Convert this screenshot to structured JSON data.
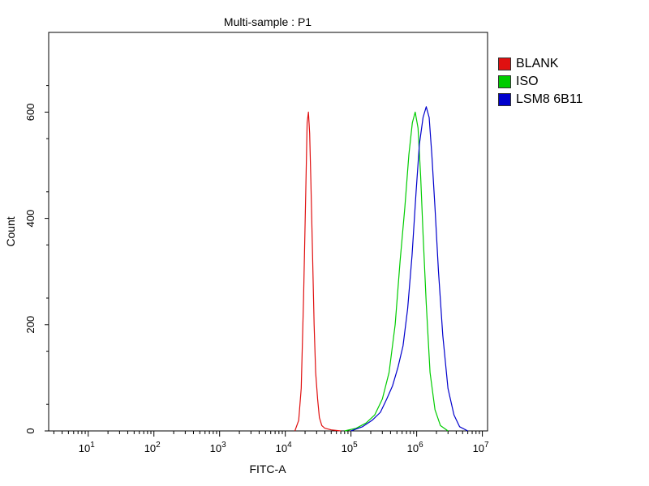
{
  "chart_data": {
    "type": "line",
    "title": "Multi-sample : P1",
    "xlabel": "FITC-A",
    "ylabel": "Count",
    "xscale": "log",
    "xlim": [
      2.5,
      12000000
    ],
    "ylim": [
      0,
      750
    ],
    "yticks": [
      0,
      200,
      400,
      600
    ],
    "ytick_labels": [
      "0",
      "200",
      "400",
      "600"
    ],
    "xticks": [
      10,
      100,
      1000,
      10000,
      100000,
      1000000,
      10000000
    ],
    "xtick_labels": [
      {
        "base": "10",
        "exp": "1"
      },
      {
        "base": "10",
        "exp": "2"
      },
      {
        "base": "10",
        "exp": "3"
      },
      {
        "base": "10",
        "exp": "4"
      },
      {
        "base": "10",
        "exp": "5"
      },
      {
        "base": "10",
        "exp": "6"
      },
      {
        "base": "10",
        "exp": "7"
      }
    ],
    "legend_position": "right",
    "series": [
      {
        "name": "BLANK",
        "color": "#e01010",
        "x": [
          14000,
          16000,
          17500,
          19000,
          20500,
          21500,
          22500,
          23500,
          24500,
          26000,
          27500,
          29000,
          31000,
          33000,
          36000,
          40000,
          50000,
          70000
        ],
        "y": [
          0,
          20,
          80,
          250,
          450,
          580,
          600,
          560,
          470,
          330,
          200,
          110,
          60,
          25,
          10,
          5,
          2,
          0
        ]
      },
      {
        "name": "ISO",
        "color": "#00cc00",
        "x": [
          80000,
          120000,
          170000,
          230000,
          300000,
          380000,
          470000,
          560000,
          660000,
          760000,
          860000,
          950000,
          1050000,
          1150000,
          1250000,
          1400000,
          1600000,
          1900000,
          2300000,
          3000000
        ],
        "y": [
          0,
          5,
          15,
          30,
          60,
          110,
          200,
          320,
          420,
          520,
          580,
          600,
          570,
          480,
          370,
          240,
          110,
          40,
          10,
          0
        ]
      },
      {
        "name": "LSM8 6B11",
        "color": "#0000cc",
        "x": [
          100000,
          150000,
          210000,
          280000,
          350000,
          430000,
          520000,
          620000,
          730000,
          850000,
          980000,
          1100000,
          1250000,
          1400000,
          1550000,
          1700000,
          1900000,
          2150000,
          2500000,
          3000000,
          3700000,
          4500000,
          6000000
        ],
        "y": [
          0,
          8,
          20,
          35,
          60,
          85,
          120,
          160,
          230,
          330,
          450,
          540,
          590,
          610,
          590,
          520,
          420,
          300,
          180,
          80,
          30,
          8,
          0
        ]
      }
    ]
  }
}
